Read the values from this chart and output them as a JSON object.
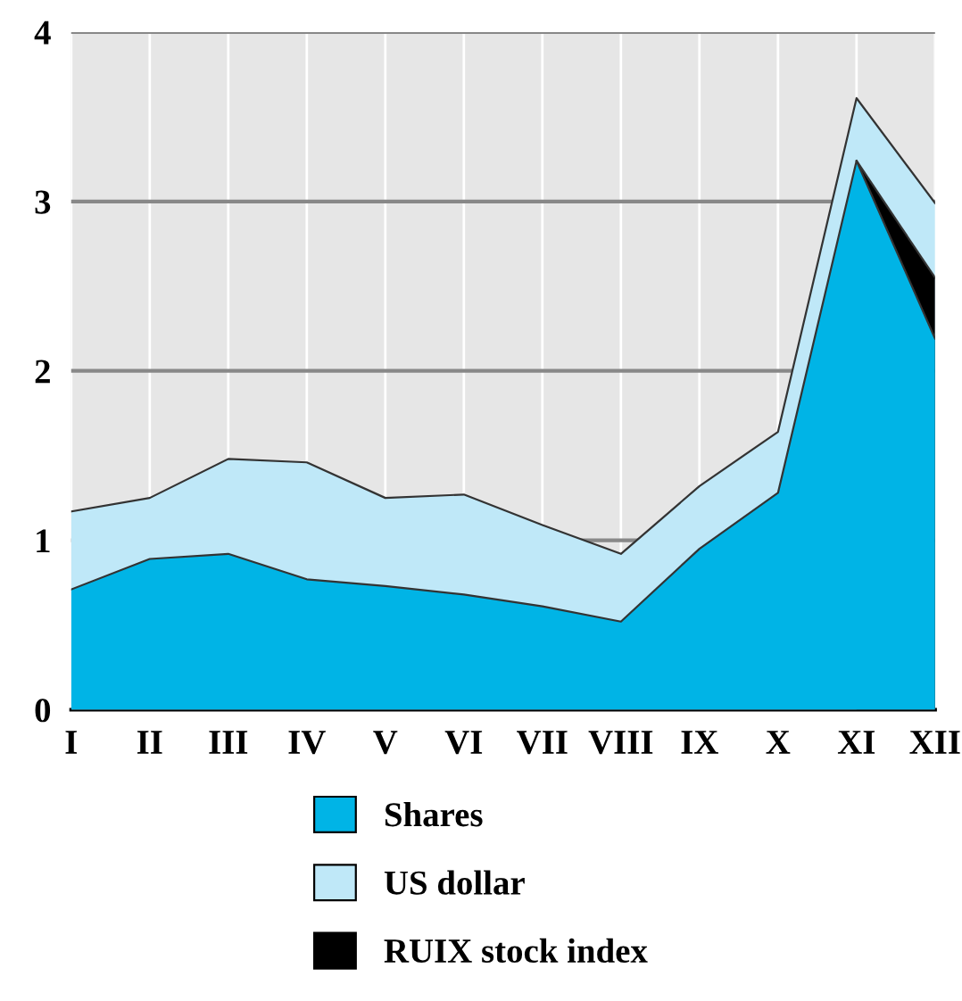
{
  "chart_data": {
    "type": "area",
    "categories": [
      "I",
      "II",
      "III",
      "IV",
      "V",
      "VI",
      "VII",
      "VIII",
      "IX",
      "X",
      "XI",
      "XII"
    ],
    "series": [
      {
        "name": "Shares",
        "color": "#00b4e6",
        "values": [
          0.71,
          0.89,
          0.92,
          0.77,
          0.73,
          0.68,
          0.61,
          0.52,
          0.95,
          1.28,
          3.24,
          2.19
        ]
      },
      {
        "name": "US dollar",
        "color": "#bfe8f8",
        "values": [
          1.17,
          1.25,
          1.48,
          1.46,
          1.25,
          1.27,
          1.09,
          0.92,
          1.32,
          1.64,
          3.61,
          2.99
        ]
      },
      {
        "name": "RUIX stock index",
        "color": "#000000",
        "values": [
          null,
          null,
          null,
          null,
          null,
          null,
          null,
          null,
          null,
          null,
          3.24,
          2.55
        ]
      }
    ],
    "ylim": [
      0,
      4
    ],
    "yticks": [
      0,
      1,
      2,
      3,
      4
    ],
    "grid": true,
    "legend": "bottom"
  }
}
